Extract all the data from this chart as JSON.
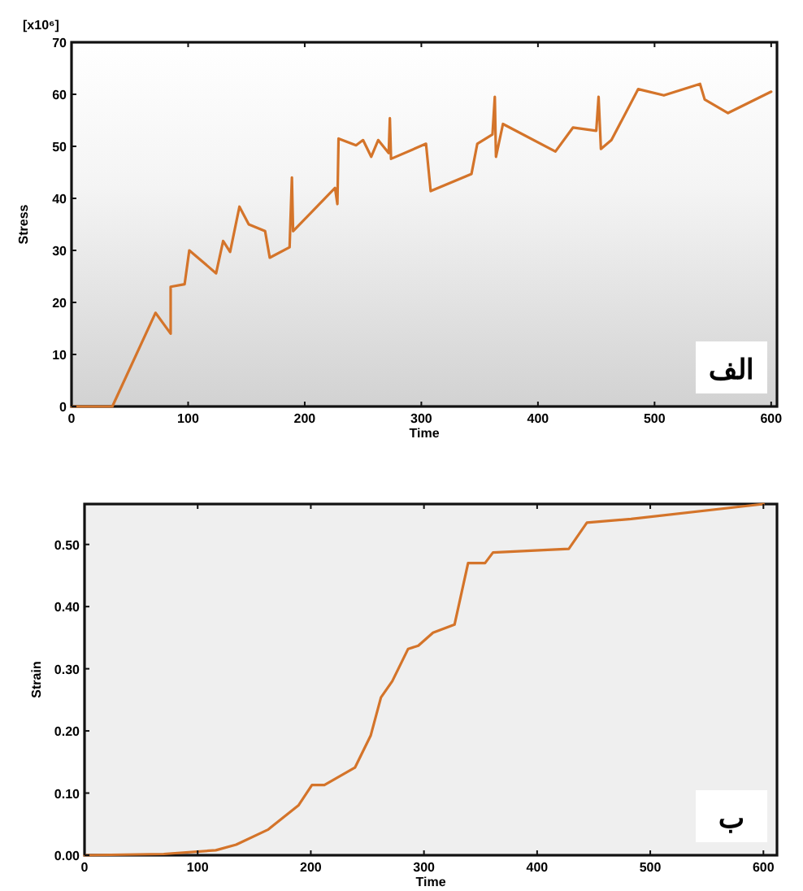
{
  "chart_data": [
    {
      "type": "line",
      "xlabel": "Time",
      "ylabel": "Stress",
      "annotations": [
        "[x10⁶]",
        "الف"
      ],
      "xlim": [
        0,
        605
      ],
      "ylim": [
        0,
        70
      ],
      "xticks": [
        0,
        100,
        200,
        300,
        400,
        500,
        600
      ],
      "yticks": [
        0,
        10,
        20,
        30,
        40,
        50,
        60,
        70
      ],
      "series": [
        {
          "color": "#d4742a",
          "x": [
            0,
            35,
            72,
            85,
            85,
            97,
            101,
            124,
            130,
            136,
            144,
            152,
            166,
            170,
            187,
            189,
            190,
            226,
            228,
            229,
            244,
            250,
            257,
            263,
            272,
            273,
            274,
            304,
            308,
            343,
            348,
            361,
            363,
            364,
            370,
            415,
            430,
            450,
            452,
            454,
            463,
            486,
            508,
            539,
            543,
            563,
            600
          ],
          "values": [
            0,
            0,
            18,
            14,
            23,
            23.5,
            30,
            25.6,
            31.8,
            29.7,
            38.4,
            35,
            33.7,
            28.6,
            30.6,
            44,
            33.7,
            42,
            38.9,
            51.5,
            50.2,
            51.2,
            48,
            51.2,
            48.7,
            55.4,
            47.6,
            50.5,
            41.4,
            44.7,
            50.5,
            52.3,
            59.5,
            48,
            54.3,
            49,
            53.6,
            53,
            59.5,
            49.5,
            51.2,
            61,
            59.8,
            62,
            59,
            56.4,
            60.5
          ]
        }
      ]
    },
    {
      "type": "line",
      "xlabel": "Time",
      "ylabel": "Strain",
      "annotations": [
        "ب"
      ],
      "xlim": [
        0,
        612
      ],
      "ylim": [
        0,
        0.565
      ],
      "xticks": [
        0,
        100,
        200,
        300,
        400,
        500,
        600
      ],
      "yticks": [
        {
          "value": 0,
          "label": "0.00"
        },
        {
          "value": 0.1,
          "label": "0.10"
        },
        {
          "value": 0.2,
          "label": "0.20"
        },
        {
          "value": 0.3,
          "label": "0.30"
        },
        {
          "value": 0.4,
          "label": "0.40"
        },
        {
          "value": 0.5,
          "label": "0.50"
        }
      ],
      "series": [
        {
          "color": "#d4742a",
          "x": [
            0,
            70,
            116,
            134,
            162,
            189,
            201,
            212,
            239,
            253,
            262,
            272,
            286,
            295,
            308,
            327,
            339,
            354,
            361,
            428,
            444,
            483,
            600
          ],
          "values": [
            0,
            0.002,
            0.008,
            0.017,
            0.041,
            0.08,
            0.113,
            0.113,
            0.141,
            0.193,
            0.254,
            0.28,
            0.332,
            0.337,
            0.358,
            0.371,
            0.47,
            0.47,
            0.487,
            0.493,
            0.535,
            0.541,
            0.565
          ]
        }
      ]
    }
  ]
}
